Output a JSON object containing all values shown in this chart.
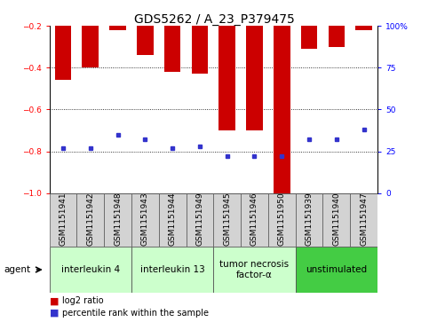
{
  "title": "GDS5262 / A_23_P379475",
  "samples": [
    "GSM1151941",
    "GSM1151942",
    "GSM1151948",
    "GSM1151943",
    "GSM1151944",
    "GSM1151949",
    "GSM1151945",
    "GSM1151946",
    "GSM1151950",
    "GSM1151939",
    "GSM1151940",
    "GSM1151947"
  ],
  "log2_ratio": [
    -0.46,
    -0.4,
    -0.22,
    -0.34,
    -0.42,
    -0.43,
    -0.7,
    -0.7,
    -1.0,
    -0.31,
    -0.3,
    -0.22
  ],
  "percentile_rank": [
    27,
    27,
    35,
    32,
    27,
    28,
    22,
    22,
    22,
    32,
    32,
    38
  ],
  "bar_color": "#cc0000",
  "dot_color": "#3333cc",
  "ylim_left": [
    -1.0,
    -0.2
  ],
  "ylim_right": [
    0,
    100
  ],
  "yticks_left": [
    -1.0,
    -0.8,
    -0.6,
    -0.4,
    -0.2
  ],
  "yticks_right": [
    0,
    25,
    50,
    75,
    100
  ],
  "groups": [
    {
      "label": "interleukin 4",
      "start": 0,
      "end": 3,
      "color": "#ccffcc"
    },
    {
      "label": "interleukin 13",
      "start": 3,
      "end": 6,
      "color": "#ccffcc"
    },
    {
      "label": "tumor necrosis\nfactor-α",
      "start": 6,
      "end": 9,
      "color": "#ccffcc"
    },
    {
      "label": "unstimulated",
      "start": 9,
      "end": 12,
      "color": "#44cc44"
    }
  ],
  "agent_label": "agent",
  "legend_log2": "log2 ratio",
  "legend_pct": "percentile rank within the sample",
  "bar_width": 0.6,
  "title_fontsize": 10,
  "tick_fontsize": 6.5,
  "group_fontsize": 7.5,
  "legend_fontsize": 7
}
